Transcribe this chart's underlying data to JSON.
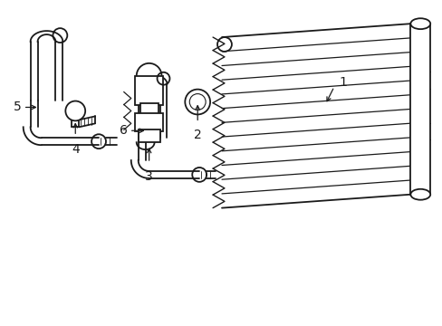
{
  "background_color": "#ffffff",
  "line_color": "#1a1a1a",
  "line_width": 1.3,
  "label_fontsize": 10,
  "fig_width": 4.89,
  "fig_height": 3.6
}
